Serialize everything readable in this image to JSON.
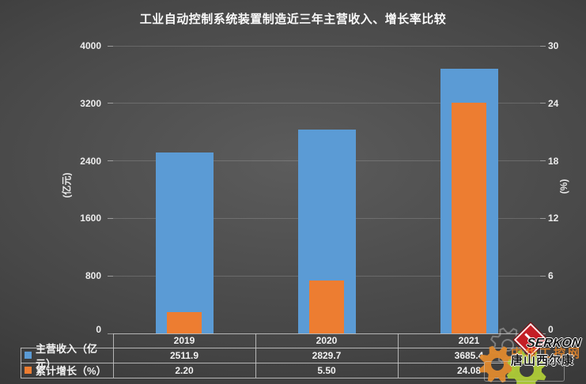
{
  "title": "工业自动控制系统装置制造近三年主营收入、增长率比较",
  "chart_data": {
    "type": "bar",
    "categories": [
      "2019",
      "2020",
      "2021"
    ],
    "series": [
      {
        "name": "主营收入（亿元）",
        "axis": "left",
        "color": "#5B9BD5",
        "values": [
          2511.9,
          2829.7,
          3685.4
        ]
      },
      {
        "name": "累计增长（%）",
        "axis": "right",
        "color": "#ED7D31",
        "values": [
          2.2,
          5.5,
          24.08
        ]
      }
    ],
    "left_axis": {
      "label": "(亿元)",
      "ticks": [
        0,
        800,
        1600,
        2400,
        3200,
        4000
      ],
      "max": 4000
    },
    "right_axis": {
      "label": "(%)",
      "ticks": [
        0,
        6,
        12,
        18,
        24,
        30
      ],
      "max": 30
    },
    "grid": true,
    "legend_position": "data-table-left"
  },
  "table": {
    "columns": [
      "2019",
      "2020",
      "2021"
    ],
    "rows": [
      {
        "label": "主营收入（亿元）",
        "swatch": "#5B9BD5",
        "values": [
          "2511.9",
          "2829.7",
          "3685.4"
        ]
      },
      {
        "label": "累计增长（%）",
        "swatch": "#ED7D31",
        "values": [
          "2.20",
          "5.50",
          "24.08"
        ]
      }
    ]
  },
  "watermark": {
    "brand": "SERKON",
    "site_text": "中华工控网",
    "company_text": "唐山西尔康",
    "colors": {
      "red": "#C41E25",
      "orange_gear": "#E08A2E",
      "green_gear": "#ABC837"
    }
  }
}
